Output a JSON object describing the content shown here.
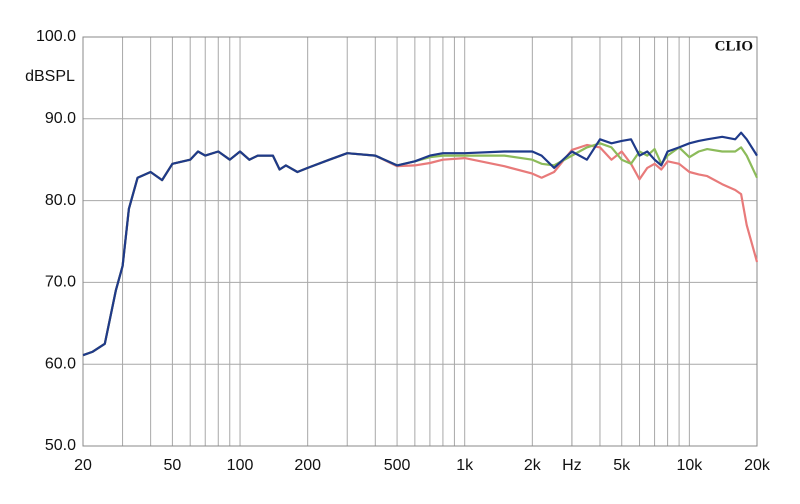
{
  "chart_data": {
    "type": "line",
    "ylabel": "dBSPL",
    "annotation": "CLIO",
    "xscale": "log",
    "xlim": [
      20,
      20000
    ],
    "ylim": [
      50,
      100
    ],
    "xticks": [
      20,
      50,
      100,
      200,
      500,
      {
        "value": 1000,
        "label": "1k"
      },
      {
        "value": 2000,
        "label": "2k"
      },
      {
        "value": 3000,
        "label": "Hz"
      },
      {
        "value": 5000,
        "label": "5k"
      },
      {
        "value": 10000,
        "label": "10k"
      },
      {
        "value": 20000,
        "label": "20k"
      }
    ],
    "xgrid": [
      30,
      40,
      60,
      70,
      80,
      90,
      300,
      400,
      600,
      700,
      800,
      900,
      3000,
      4000,
      6000,
      7000,
      8000,
      9000
    ],
    "yticks": [
      {
        "value": 50,
        "label": "50.0"
      },
      {
        "value": 60,
        "label": "60.0"
      },
      {
        "value": 70,
        "label": "70.0"
      },
      {
        "value": 80,
        "label": "80.0"
      },
      {
        "value": 90,
        "label": "90.0"
      },
      {
        "value": 100,
        "label": "100.0"
      }
    ],
    "grid": true,
    "x": [
      20,
      22,
      25,
      28,
      30,
      32,
      35,
      40,
      45,
      50,
      60,
      65,
      70,
      80,
      90,
      100,
      110,
      120,
      140,
      150,
      160,
      180,
      200,
      250,
      300,
      400,
      500,
      600,
      700,
      800,
      1000,
      1500,
      2000,
      2200,
      2500,
      3000,
      3500,
      4000,
      4500,
      5000,
      5500,
      6000,
      6500,
      7000,
      7500,
      8000,
      9000,
      10000,
      11000,
      12000,
      14000,
      16000,
      17000,
      18000,
      20000
    ],
    "series": [
      {
        "color": "#e87a7a",
        "values": [
          61.1,
          61.5,
          62.5,
          69,
          72,
          79,
          82.8,
          83.5,
          82.5,
          84.5,
          85,
          86,
          85.5,
          86,
          85,
          86,
          85,
          85.5,
          85.5,
          83.8,
          84.3,
          83.5,
          84,
          85,
          85.8,
          85.5,
          84.2,
          84.3,
          84.6,
          85,
          85.2,
          84.2,
          83.3,
          82.8,
          83.5,
          86.2,
          86.8,
          86.5,
          85,
          86,
          84.5,
          82.6,
          84,
          84.5,
          83.8,
          84.8,
          84.5,
          83.5,
          83.2,
          83,
          82,
          81.3,
          80.8,
          77,
          72.5
        ]
      },
      {
        "color": "#8cbb5a",
        "values": [
          61.1,
          61.5,
          62.5,
          69,
          72,
          79,
          82.8,
          83.5,
          82.5,
          84.5,
          85,
          86,
          85.5,
          86,
          85,
          86,
          85,
          85.5,
          85.5,
          83.8,
          84.3,
          83.5,
          84,
          85,
          85.8,
          85.5,
          84.3,
          84.8,
          85.3,
          85.5,
          85.5,
          85.5,
          85,
          84.5,
          84.3,
          85.5,
          86.5,
          87,
          86.5,
          85,
          84.5,
          86,
          85.5,
          86.3,
          84.5,
          85.5,
          86.5,
          85.3,
          86,
          86.3,
          86,
          86,
          86.5,
          85.5,
          82.8
        ]
      },
      {
        "color": "#1f3a8a",
        "values": [
          61.1,
          61.5,
          62.5,
          69,
          72,
          79,
          82.8,
          83.5,
          82.5,
          84.5,
          85,
          86,
          85.5,
          86,
          85,
          86,
          85,
          85.5,
          85.5,
          83.8,
          84.3,
          83.5,
          84,
          85,
          85.8,
          85.5,
          84.3,
          84.8,
          85.5,
          85.8,
          85.8,
          86,
          86,
          85.5,
          84,
          86,
          85,
          87.5,
          87,
          87.3,
          87.5,
          85.5,
          86,
          85,
          84.3,
          86,
          86.5,
          87,
          87.3,
          87.5,
          87.8,
          87.5,
          88.3,
          87.5,
          85.5
        ]
      }
    ]
  }
}
